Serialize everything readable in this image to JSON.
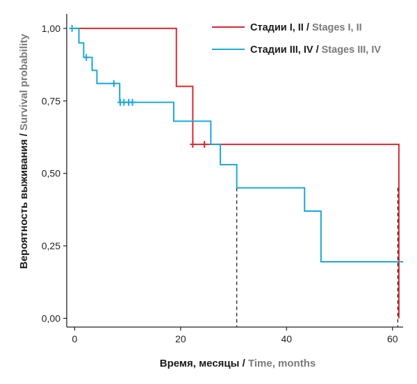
{
  "chart_data": {
    "type": "line",
    "subtype": "kaplan-meier step",
    "xlabel_ru": "Время, месяцы",
    "xlabel_en": "Time, months",
    "ylabel_ru": "Вероятность выживания",
    "ylabel_en": "Survival probability",
    "label_separator": " / ",
    "xlim": [
      -1.5,
      62
    ],
    "ylim": [
      -0.03,
      1.05
    ],
    "x_ticks": [
      0,
      20,
      40,
      60
    ],
    "x_tick_labels": [
      "0",
      "20",
      "40",
      "60"
    ],
    "y_ticks": [
      0,
      0.25,
      0.5,
      0.75,
      1.0
    ],
    "y_tick_labels": [
      "0,00",
      "0,25",
      "0,50",
      "0,75",
      "1,00"
    ],
    "grid": false,
    "legend_position": "top-right",
    "series": [
      {
        "name_ru": "Стадии I, II",
        "name_en": "Stages I, II",
        "color": "#d62a32",
        "steps": [
          [
            0,
            1.0
          ],
          [
            19.2,
            0.8
          ],
          [
            22.3,
            0.6
          ],
          [
            61.2,
            0.0
          ]
        ],
        "x_end": 61.2,
        "censored": [
          [
            22.3,
            0.6
          ],
          [
            24.5,
            0.6
          ]
        ]
      },
      {
        "name_ru": "Стадии III, IV",
        "name_en": "Stages III, IV",
        "color": "#1aa8d8",
        "steps": [
          [
            0,
            1.0
          ],
          [
            0.8,
            0.95
          ],
          [
            1.7,
            0.9
          ],
          [
            3.3,
            0.855
          ],
          [
            4.2,
            0.81
          ],
          [
            8.5,
            0.745
          ],
          [
            18.7,
            0.68
          ],
          [
            25.7,
            0.6
          ],
          [
            27.5,
            0.53
          ],
          [
            30.6,
            0.45
          ],
          [
            43.4,
            0.37
          ],
          [
            46.5,
            0.195
          ]
        ],
        "x_end": 62,
        "censored": [
          [
            -0.5,
            1.0
          ],
          [
            2.2,
            0.9
          ],
          [
            7.4,
            0.81
          ],
          [
            8.6,
            0.745
          ],
          [
            9.3,
            0.745
          ],
          [
            10.2,
            0.745
          ],
          [
            10.9,
            0.745
          ]
        ]
      }
    ],
    "median_markers": [
      {
        "x": 30.6,
        "y": 0.45
      },
      {
        "x": 61.0,
        "y": 0.45
      }
    ]
  }
}
